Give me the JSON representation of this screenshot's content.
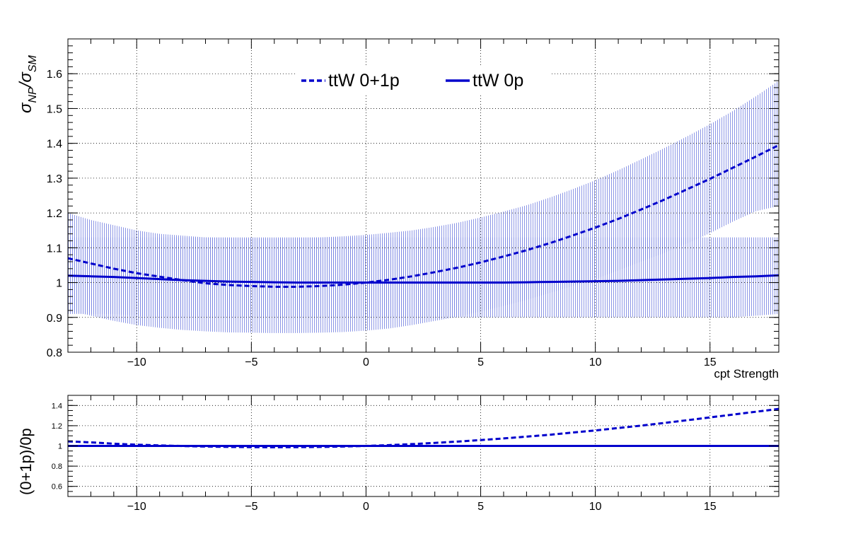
{
  "colors": {
    "series": "#0000cc",
    "band": "#4a5ad8",
    "axis": "#000000",
    "grid": "#000000"
  },
  "chart_data": [
    {
      "type": "line",
      "xlabel": "cpt Strength",
      "ylabel_main": "σ",
      "ylabel_sub1": "NP",
      "ylabel_mid": "/σ",
      "ylabel_sub2": "SM",
      "xlim": [
        -13,
        18
      ],
      "ylim": [
        0.8,
        1.7
      ],
      "xticks": [
        -10,
        -5,
        0,
        5,
        10,
        15
      ],
      "xtick_labels": [
        "−10",
        "−5",
        "0",
        "5",
        "10",
        "15"
      ],
      "yticks": [
        0.8,
        0.9,
        1,
        1.1,
        1.2,
        1.3,
        1.4,
        1.5,
        1.6
      ],
      "ytick_labels": [
        "0.8",
        "0.9",
        "1",
        "1.1",
        "1.2",
        "1.3",
        "1.4",
        "1.5",
        "1.6"
      ],
      "grid": true,
      "legend_position": "top-center",
      "x": [
        -13,
        -12,
        -11,
        -10,
        -9,
        -8,
        -7,
        -6,
        -5,
        -4,
        -3,
        -2,
        -1,
        0,
        1,
        2,
        3,
        4,
        5,
        6,
        7,
        8,
        9,
        10,
        11,
        12,
        13,
        14,
        15,
        16,
        17,
        18
      ],
      "series": [
        {
          "name": "ttW 0+1p",
          "style": "dashed",
          "values": [
            1.07,
            1.055,
            1.04,
            1.027,
            1.017,
            1.007,
            0.998,
            0.993,
            0.99,
            0.988,
            0.988,
            0.99,
            0.994,
            1.0,
            1.008,
            1.018,
            1.03,
            1.043,
            1.058,
            1.075,
            1.093,
            1.113,
            1.135,
            1.158,
            1.183,
            1.21,
            1.238,
            1.268,
            1.298,
            1.33,
            1.362,
            1.395
          ],
          "band_upper": [
            1.2,
            1.18,
            1.165,
            1.15,
            1.14,
            1.135,
            1.13,
            1.128,
            1.127,
            1.127,
            1.128,
            1.13,
            1.133,
            1.137,
            1.143,
            1.15,
            1.16,
            1.172,
            1.187,
            1.204,
            1.222,
            1.244,
            1.268,
            1.294,
            1.323,
            1.354,
            1.386,
            1.42,
            1.455,
            1.493,
            1.535,
            1.58
          ],
          "band_lower": [
            0.92,
            0.905,
            0.89,
            0.878,
            0.87,
            0.864,
            0.86,
            0.857,
            0.856,
            0.855,
            0.855,
            0.856,
            0.858,
            0.862,
            0.868,
            0.878,
            0.89,
            0.902,
            0.917,
            0.933,
            0.95,
            0.97,
            0.99,
            1.01,
            1.035,
            1.06,
            1.085,
            1.112,
            1.142,
            1.175,
            1.205,
            1.22
          ]
        },
        {
          "name": "ttW 0p",
          "style": "solid",
          "values": [
            1.02,
            1.018,
            1.016,
            1.013,
            1.01,
            1.007,
            1.005,
            1.003,
            1.002,
            1.001,
            1.0,
            1.0,
            1.0,
            1.0,
            1.0,
            1.0,
            1.0,
            1.0,
            1.0,
            1.0,
            1.001,
            1.002,
            1.003,
            1.004,
            1.005,
            1.007,
            1.009,
            1.011,
            1.013,
            1.016,
            1.018,
            1.021
          ],
          "band_upper": [
            1.13,
            1.13,
            1.13,
            1.13,
            1.13,
            1.13,
            1.13,
            1.13,
            1.13,
            1.13,
            1.13,
            1.13,
            1.13,
            1.13,
            1.13,
            1.13,
            1.13,
            1.13,
            1.13,
            1.13,
            1.13,
            1.13,
            1.13,
            1.13,
            1.13,
            1.13,
            1.13,
            1.13,
            1.13,
            1.13,
            1.13,
            1.13
          ],
          "band_lower": [
            0.91,
            0.91,
            0.91,
            0.905,
            0.9,
            0.9,
            0.9,
            0.9,
            0.9,
            0.9,
            0.9,
            0.9,
            0.9,
            0.9,
            0.9,
            0.9,
            0.9,
            0.9,
            0.9,
            0.9,
            0.9,
            0.9,
            0.9,
            0.9,
            0.9,
            0.9,
            0.9,
            0.9,
            0.9,
            0.9,
            0.905,
            0.91
          ]
        }
      ]
    },
    {
      "type": "line",
      "xlabel": "",
      "ylabel": "(0+1p)/0p",
      "xlim": [
        -13,
        18
      ],
      "ylim": [
        0.5,
        1.5
      ],
      "xticks": [
        -10,
        -5,
        0,
        5,
        10,
        15
      ],
      "xtick_labels": [
        "−10",
        "−5",
        "0",
        "5",
        "10",
        "15"
      ],
      "yticks": [
        0.6,
        0.8,
        1,
        1.2,
        1.4
      ],
      "ytick_labels": [
        "0.6",
        "0.8",
        "1",
        "1.2",
        "1.4"
      ],
      "grid": true,
      "x": [
        -13,
        -12,
        -11,
        -10,
        -9,
        -8,
        -7,
        -6,
        -5,
        -4,
        -3,
        -2,
        -1,
        0,
        1,
        2,
        3,
        4,
        5,
        6,
        7,
        8,
        9,
        10,
        11,
        12,
        13,
        14,
        15,
        16,
        17,
        18
      ],
      "series": [
        {
          "style": "dashed",
          "values": [
            1.045,
            1.035,
            1.022,
            1.012,
            1.005,
            0.999,
            0.994,
            0.99,
            0.988,
            0.987,
            0.988,
            0.99,
            0.994,
            1.0,
            1.008,
            1.018,
            1.03,
            1.043,
            1.058,
            1.074,
            1.092,
            1.11,
            1.132,
            1.153,
            1.177,
            1.201,
            1.227,
            1.254,
            1.282,
            1.31,
            1.338,
            1.366
          ]
        },
        {
          "style": "solid",
          "values": [
            1,
            1,
            1,
            1,
            1,
            1,
            1,
            1,
            1,
            1,
            1,
            1,
            1,
            1,
            1,
            1,
            1,
            1,
            1,
            1,
            1,
            1,
            1,
            1,
            1,
            1,
            1,
            1,
            1,
            1,
            1,
            1
          ]
        }
      ]
    }
  ]
}
